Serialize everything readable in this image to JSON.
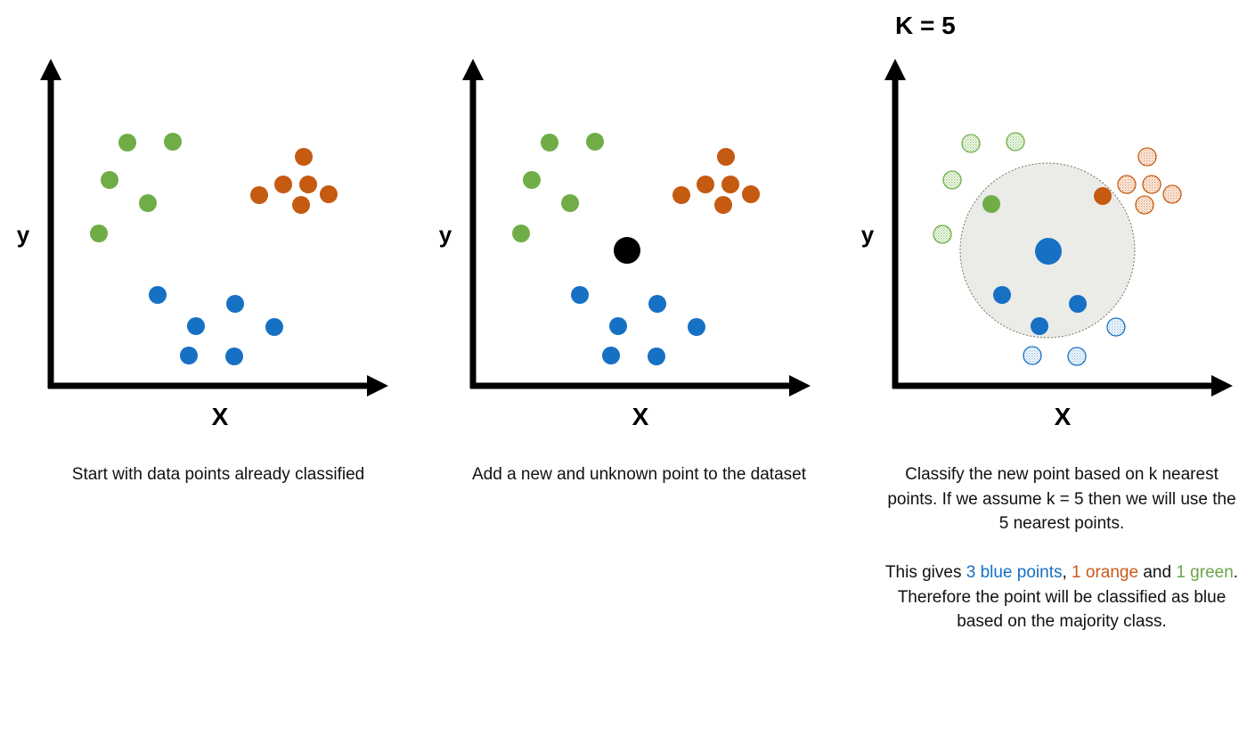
{
  "title": "K = 5",
  "axes": {
    "x_label": "X",
    "y_label": "y"
  },
  "colors": {
    "green": "#70ad47",
    "orange": "#c55a11",
    "blue": "#1670c4",
    "new_point": "#000000",
    "neighborhood_fill": "#ebebe8",
    "axis": "#000000"
  },
  "panels": [
    {
      "id": "classified",
      "caption": "Start with data points already classified",
      "points": {
        "green": [
          [
            143,
            160
          ],
          [
            194,
            159
          ],
          [
            123,
            202
          ],
          [
            166,
            228
          ],
          [
            111,
            262
          ]
        ],
        "orange": [
          [
            341,
            176
          ],
          [
            291,
            219
          ],
          [
            318,
            207
          ],
          [
            346,
            207
          ],
          [
            369,
            218
          ],
          [
            338,
            230
          ]
        ],
        "blue": [
          [
            177,
            331
          ],
          [
            264,
            341
          ],
          [
            220,
            366
          ],
          [
            308,
            367
          ],
          [
            212,
            399
          ],
          [
            263,
            400
          ]
        ]
      }
    },
    {
      "id": "new-point",
      "caption": "Add a new and unknown point to the dataset",
      "new_point": [
        704,
        281
      ],
      "points": {
        "green": [
          [
            617,
            160
          ],
          [
            668,
            159
          ],
          [
            597,
            202
          ],
          [
            640,
            228
          ],
          [
            585,
            262
          ]
        ],
        "orange": [
          [
            815,
            176
          ],
          [
            765,
            219
          ],
          [
            792,
            207
          ],
          [
            820,
            207
          ],
          [
            843,
            218
          ],
          [
            812,
            230
          ]
        ],
        "blue": [
          [
            651,
            331
          ],
          [
            738,
            341
          ],
          [
            694,
            366
          ],
          [
            782,
            367
          ],
          [
            686,
            399
          ],
          [
            737,
            400
          ]
        ]
      }
    },
    {
      "id": "k-nearest",
      "caption": "Classify the new point based on k nearest points. If we assume k = 5 then we will use the 5 nearest points.",
      "result_text": {
        "p1": "This gives ",
        "blue": "3 blue points",
        "p2": ", ",
        "orange": "1 orange",
        "p3": " and ",
        "green": "1 green",
        "p4": ". Therefore the point will be classified as blue based on the majority class."
      },
      "new_point": [
        1177,
        282
      ],
      "neighborhood": [
        1176,
        281
      ],
      "neighbors": {
        "green": [
          [
            1113,
            229
          ]
        ],
        "orange": [
          [
            1238,
            220
          ]
        ],
        "blue": [
          [
            1125,
            331
          ],
          [
            1210,
            341
          ],
          [
            1167,
            366
          ]
        ]
      },
      "faded": {
        "green": [
          [
            1090,
            161
          ],
          [
            1140,
            159
          ],
          [
            1069,
            202
          ],
          [
            1058,
            263
          ]
        ],
        "orange": [
          [
            1288,
            176
          ],
          [
            1265,
            207
          ],
          [
            1293,
            207
          ],
          [
            1316,
            218
          ],
          [
            1285,
            230
          ]
        ],
        "blue": [
          [
            1253,
            367
          ],
          [
            1159,
            399
          ],
          [
            1209,
            400
          ]
        ]
      }
    }
  ]
}
